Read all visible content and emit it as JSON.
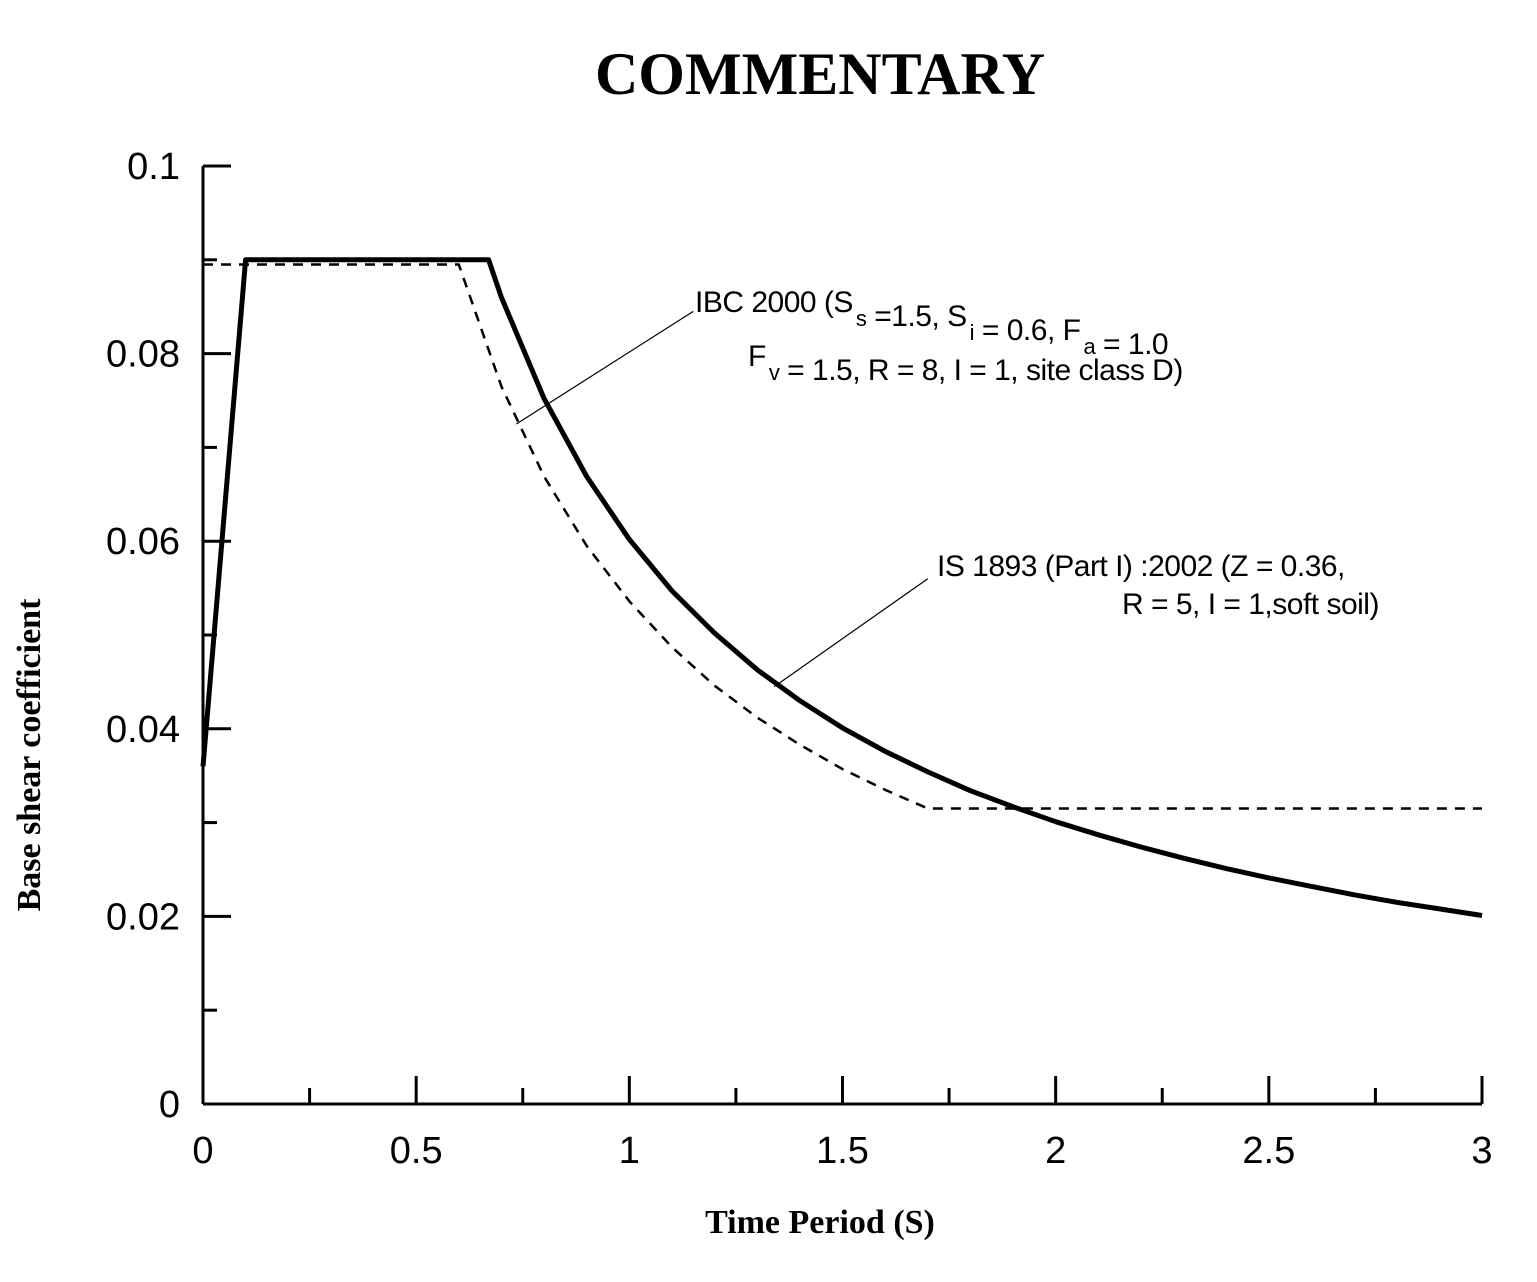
{
  "header": {
    "title": "COMMENTARY"
  },
  "chart_data": {
    "type": "line",
    "xlabel": "Time Period (S)",
    "ylabel": "Base shear coefficient",
    "xlim": [
      0,
      3
    ],
    "ylim": [
      0,
      0.1
    ],
    "x_ticks_major": [
      0,
      0.5,
      1,
      1.5,
      2,
      2.5,
      3
    ],
    "x_tick_labels": [
      "0",
      "0.5",
      "1",
      "1.5",
      "2",
      "2.5",
      "3"
    ],
    "x_ticks_minor": [
      0.25,
      0.75,
      1.25,
      1.75,
      2.25,
      2.75
    ],
    "y_ticks_major": [
      0,
      0.02,
      0.04,
      0.06,
      0.08,
      0.1
    ],
    "y_tick_labels": [
      "0",
      "0.02",
      "0.04",
      "0.06",
      "0.08",
      "0.1"
    ],
    "y_ticks_minor": [
      0.01,
      0.03,
      0.05,
      0.07,
      0.09
    ],
    "grid": false,
    "legend": "none",
    "series": [
      {
        "style": "solid-thick",
        "color": "#000000",
        "points": [
          [
            0,
            0.036
          ],
          [
            0.1,
            0.09
          ],
          [
            0.67,
            0.09
          ],
          [
            0.7,
            0.086
          ],
          [
            0.8,
            0.0752
          ],
          [
            0.9,
            0.0669
          ],
          [
            1.0,
            0.0602
          ],
          [
            1.1,
            0.0547
          ],
          [
            1.2,
            0.0502
          ],
          [
            1.3,
            0.0463
          ],
          [
            1.4,
            0.043
          ],
          [
            1.5,
            0.0401
          ],
          [
            1.6,
            0.0376
          ],
          [
            1.7,
            0.0354
          ],
          [
            1.8,
            0.0334
          ],
          [
            1.9,
            0.0317
          ],
          [
            2.0,
            0.0301
          ],
          [
            2.1,
            0.0287
          ],
          [
            2.2,
            0.0274
          ],
          [
            2.3,
            0.0262
          ],
          [
            2.4,
            0.0251
          ],
          [
            2.5,
            0.0241
          ],
          [
            2.6,
            0.0232
          ],
          [
            2.7,
            0.0223
          ],
          [
            2.8,
            0.0215
          ],
          [
            2.9,
            0.0208
          ],
          [
            3.0,
            0.0201
          ]
        ]
      },
      {
        "style": "dashed",
        "color": "#000000",
        "points": [
          [
            0,
            0.0895
          ],
          [
            0.6,
            0.0895
          ],
          [
            0.7,
            0.0765
          ],
          [
            0.8,
            0.0669
          ],
          [
            0.9,
            0.0595
          ],
          [
            1.0,
            0.0536
          ],
          [
            1.1,
            0.0487
          ],
          [
            1.2,
            0.0446
          ],
          [
            1.3,
            0.0412
          ],
          [
            1.4,
            0.0383
          ],
          [
            1.5,
            0.0357
          ],
          [
            1.6,
            0.0335
          ],
          [
            1.67,
            0.0321
          ],
          [
            1.7,
            0.0315
          ],
          [
            3.0,
            0.0315
          ]
        ]
      }
    ],
    "annotations": [
      {
        "id": "ibc",
        "line1": [
          {
            "t": "IBC 2000 (S"
          },
          {
            "sub": "s"
          },
          {
            "t": " =1.5, S"
          },
          {
            "sub": "i"
          },
          {
            "t": " = 0.6, F"
          },
          {
            "sub": "a"
          },
          {
            "t": " = 1.0"
          }
        ],
        "line2": [
          {
            "t": "F"
          },
          {
            "sub": "v"
          },
          {
            "t": " = 1.5, R = 8, I = 1, site class D)"
          }
        ],
        "leader_from": [
          1.15,
          0.0845
        ],
        "leader_to": [
          0.735,
          0.0725
        ]
      },
      {
        "id": "is1893",
        "line1": [
          {
            "t": "IS 1893 (Part I) :2002 (Z = 0.36,"
          }
        ],
        "line2": [
          {
            "t": "R = 5, I = 1,soft soil)"
          }
        ],
        "leader_from": [
          1.7,
          0.056
        ],
        "leader_to": [
          1.34,
          0.0445
        ]
      }
    ]
  }
}
